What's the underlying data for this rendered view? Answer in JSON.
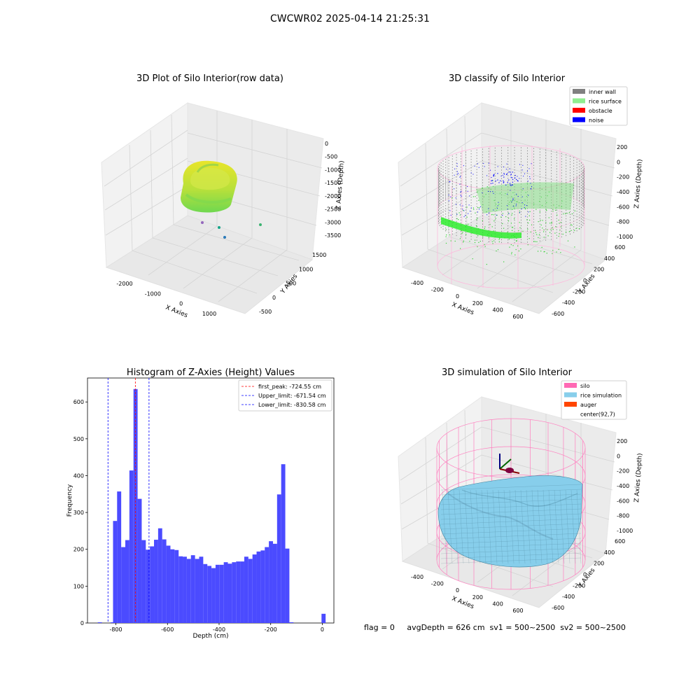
{
  "figure": {
    "suptitle": "CWCWR02 2025-04-14 21:25:31",
    "status_line": "flag = 0     avgDepth = 626 cm  sv1 = 500~2500  sv2 = 500~2500"
  },
  "colors": {
    "pane": "#f2f2f2",
    "grid": "#d9d9d9",
    "hist_bar": "#4b4bff",
    "peak_line": "#ff0000",
    "limit_line": "#0000ff",
    "inner_wall": "#808080",
    "rice_surface": "#90ee90",
    "obstacle": "#ff0000",
    "noise": "#0000ff",
    "silo": "#ff69b4",
    "rice_simulation": "#87ceeb",
    "auger": "#ff4500"
  },
  "chart_data": [
    {
      "type": "scatter3d",
      "title": "3D Plot of Silo Interior(row data)",
      "xlabel": "X Axies",
      "ylabel": "Y Axies",
      "zlabel": "Z Axies (Depth)",
      "x_ticks": [
        "-2000",
        "-1000",
        "0",
        "1000"
      ],
      "y_ticks": [
        "-500",
        "0",
        "500",
        "1000",
        "1500"
      ],
      "z_ticks": [
        "0",
        "-500",
        "-1000",
        "-1500",
        "-2000",
        "-2500",
        "-3000",
        "-3500"
      ],
      "xlim": [
        -2500,
        1500
      ],
      "ylim": [
        -700,
        1700
      ],
      "zlim": [
        -3600,
        200
      ],
      "outlier_points": [
        {
          "x": -300,
          "y": 500,
          "z": -3400
        },
        {
          "x": 100,
          "y": 100,
          "z": -3400
        },
        {
          "x": 400,
          "y": -300,
          "z": -3400
        },
        {
          "x": 900,
          "y": 900,
          "z": -3400
        }
      ]
    },
    {
      "type": "scatter3d",
      "title": "3D classify of Silo Interior",
      "xlabel": "X Axies",
      "ylabel": "Y Axies",
      "zlabel": "Z Axies (Depth)",
      "x_ticks": [
        "-400",
        "-200",
        "0",
        "200",
        "400",
        "600"
      ],
      "y_ticks": [
        "-600",
        "-400",
        "-200",
        "0",
        "200",
        "400",
        "600"
      ],
      "z_ticks": [
        "200",
        "0",
        "-200",
        "-400",
        "-600",
        "-800",
        "-1000"
      ],
      "legend_position": "top-right",
      "legend": [
        {
          "label": "inner wall",
          "color_key": "inner_wall"
        },
        {
          "label": "rice surface",
          "color_key": "rice_surface"
        },
        {
          "label": "obstacle",
          "color_key": "obstacle"
        },
        {
          "label": "noise",
          "color_key": "noise"
        }
      ]
    },
    {
      "type": "bar",
      "title": "Histogram of Z-Axies (Height) Values",
      "xlabel": "Depth (cm)",
      "ylabel": "Frequency",
      "xlim": [
        -910,
        45
      ],
      "ylim": [
        0,
        665
      ],
      "x_ticks": [
        -800,
        -600,
        -400,
        -200,
        0
      ],
      "y_ticks": [
        0,
        100,
        200,
        300,
        400,
        500,
        600
      ],
      "bin_width": 15.9,
      "bins": [
        {
          "x": -870,
          "v": 2
        },
        {
          "x": -820,
          "v": 2
        },
        {
          "x": -811,
          "v": 277
        },
        {
          "x": -795.3,
          "v": 357
        },
        {
          "x": -779.4,
          "v": 206
        },
        {
          "x": -763.5,
          "v": 225
        },
        {
          "x": -747.6,
          "v": 414
        },
        {
          "x": -731.7,
          "v": 635
        },
        {
          "x": -715.8,
          "v": 337
        },
        {
          "x": -699.9,
          "v": 225
        },
        {
          "x": -684,
          "v": 199
        },
        {
          "x": -668.1,
          "v": 208
        },
        {
          "x": -652.2,
          "v": 226
        },
        {
          "x": -636.3,
          "v": 257
        },
        {
          "x": -620.4,
          "v": 227
        },
        {
          "x": -604.5,
          "v": 210
        },
        {
          "x": -588.6,
          "v": 200
        },
        {
          "x": -572.7,
          "v": 198
        },
        {
          "x": -556.8,
          "v": 181
        },
        {
          "x": -540.9,
          "v": 180
        },
        {
          "x": -525,
          "v": 174
        },
        {
          "x": -509.1,
          "v": 184
        },
        {
          "x": -493.2,
          "v": 174
        },
        {
          "x": -477.3,
          "v": 180
        },
        {
          "x": -461.4,
          "v": 160
        },
        {
          "x": -445.5,
          "v": 155
        },
        {
          "x": -429.6,
          "v": 149
        },
        {
          "x": -413.7,
          "v": 158
        },
        {
          "x": -397.8,
          "v": 158
        },
        {
          "x": -381.9,
          "v": 165
        },
        {
          "x": -366,
          "v": 161
        },
        {
          "x": -350.1,
          "v": 165
        },
        {
          "x": -334.2,
          "v": 167
        },
        {
          "x": -318.3,
          "v": 167
        },
        {
          "x": -302.4,
          "v": 180
        },
        {
          "x": -286.5,
          "v": 174
        },
        {
          "x": -270.6,
          "v": 186
        },
        {
          "x": -254.7,
          "v": 194
        },
        {
          "x": -238.8,
          "v": 197
        },
        {
          "x": -222.9,
          "v": 206
        },
        {
          "x": -207,
          "v": 222
        },
        {
          "x": -191.1,
          "v": 215
        },
        {
          "x": -175.2,
          "v": 349
        },
        {
          "x": -159.3,
          "v": 431
        },
        {
          "x": -143.4,
          "v": 202
        },
        {
          "x": -127.5,
          "v": 2
        },
        {
          "x": -3,
          "v": 25
        }
      ],
      "vlines": [
        {
          "x": -724.55,
          "label": "first_peak: -724.55 cm",
          "color_key": "peak_line"
        },
        {
          "x": -671.54,
          "label": "Upper_limit: -671.54 cm",
          "color_key": "limit_line"
        },
        {
          "x": -830.58,
          "label": "Lower_limit: -830.58 cm",
          "color_key": "limit_line"
        }
      ],
      "legend_position": "top-right"
    },
    {
      "type": "surface3d",
      "title": "3D simulation of Silo Interior",
      "xlabel": "X Axies",
      "ylabel": "Y Axies",
      "zlabel": "Z Axies (Depth)",
      "x_ticks": [
        "-400",
        "-200",
        "0",
        "200",
        "400",
        "600"
      ],
      "y_ticks": [
        "-600",
        "-400",
        "-200",
        "0",
        "200",
        "400",
        "600"
      ],
      "z_ticks": [
        "200",
        "0",
        "-200",
        "-400",
        "-600",
        "-800",
        "-1000"
      ],
      "legend_position": "top-right",
      "legend": [
        {
          "label": "silo",
          "color_key": "silo"
        },
        {
          "label": "rice simulation",
          "color_key": "rice_simulation"
        },
        {
          "label": "auger",
          "color_key": "auger"
        },
        {
          "label": "center(92,7)",
          "color_key": ""
        }
      ]
    }
  ]
}
